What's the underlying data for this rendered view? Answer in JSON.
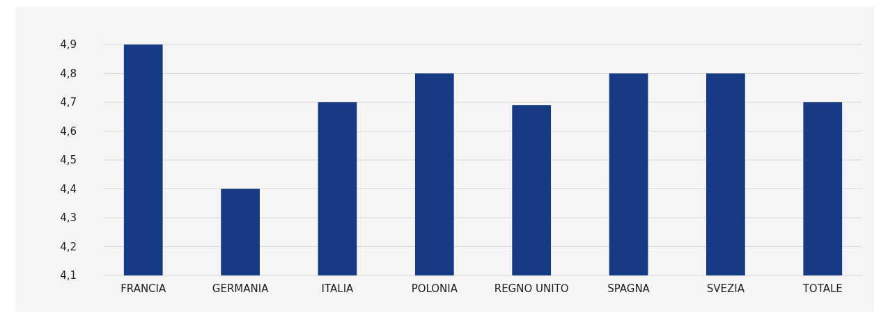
{
  "chart_data": {
    "type": "bar",
    "categories": [
      "FRANCIA",
      "GERMANIA",
      "ITALIA",
      "POLONIA",
      "REGNO UNITO",
      "SPAGNA",
      "SVEZIA",
      "TOTALE"
    ],
    "values": [
      4.9,
      4.4,
      4.7,
      4.8,
      4.69,
      4.8,
      4.8,
      4.7
    ],
    "color": "#173a84",
    "ylim": [
      4.1,
      4.9
    ],
    "yticks": [
      {
        "value": 4.1,
        "label": "4,1"
      },
      {
        "value": 4.2,
        "label": "4,2"
      },
      {
        "value": 4.3,
        "label": "4,3"
      },
      {
        "value": 4.4,
        "label": "4,4"
      },
      {
        "value": 4.5,
        "label": "4,5"
      },
      {
        "value": 4.6,
        "label": "4,6"
      },
      {
        "value": 4.7,
        "label": "4,7"
      },
      {
        "value": 4.8,
        "label": "4,8"
      },
      {
        "value": 4.9,
        "label": "4,9"
      }
    ],
    "grid": "y"
  }
}
